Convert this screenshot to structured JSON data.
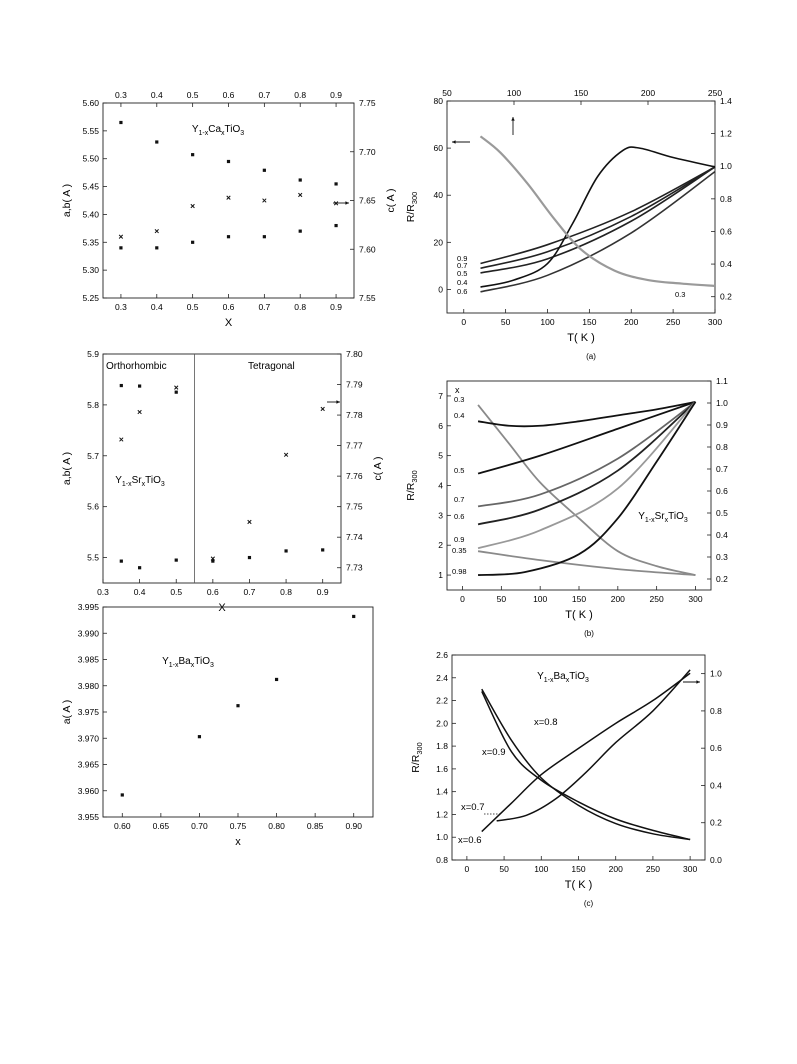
{
  "chart_data": [
    {
      "id": "ca_lattice",
      "type": "scatter",
      "title": "",
      "annotation": "Y1-xCaxTiO3",
      "xlabel": "X",
      "ylabel": "a,b( A )",
      "y2label": "c( A )",
      "xlim": [
        0.25,
        0.95
      ],
      "ylim": [
        5.25,
        5.6
      ],
      "y2lim": [
        7.55,
        7.75
      ],
      "x_ticks": [
        "0.3",
        "0.4",
        "0.5",
        "0.6",
        "0.7",
        "0.8",
        "0.9"
      ],
      "top_ticks": [
        "0.3",
        "0.4",
        "0.5",
        "0.6",
        "0.7",
        "0.8",
        "0.9"
      ],
      "y_ticks": [
        "5.25",
        "5.30",
        "5.35",
        "5.40",
        "5.45",
        "5.50",
        "5.55",
        "5.60"
      ],
      "y2_ticks": [
        "7.55",
        "7.60",
        "7.65",
        "7.70",
        "7.75"
      ],
      "series": [
        {
          "axis": "left",
          "marker": "square",
          "x": [
            0.3,
            0.4,
            0.5,
            0.6,
            0.7,
            0.8,
            0.9
          ],
          "y": [
            5.34,
            5.34,
            5.35,
            5.36,
            5.36,
            5.37,
            5.38
          ]
        },
        {
          "axis": "left",
          "marker": "cross",
          "x": [
            0.3,
            0.4,
            0.5,
            0.6,
            0.7,
            0.8,
            0.9
          ],
          "y": [
            5.36,
            5.37,
            5.415,
            5.43,
            5.425,
            5.435,
            5.42
          ]
        },
        {
          "axis": "right",
          "marker": "square",
          "x": [
            0.3,
            0.4,
            0.5,
            0.6,
            0.7,
            0.8,
            0.9
          ],
          "y": [
            7.73,
            7.71,
            7.697,
            7.69,
            7.681,
            7.671,
            7.667
          ]
        }
      ]
    },
    {
      "id": "sr_lattice",
      "type": "scatter",
      "title": "",
      "annotation": "Y1-xSrxTiO3",
      "regions": [
        "Orthorhombic",
        "Tetragonal"
      ],
      "boundary_x": 0.55,
      "xlabel": "X",
      "ylabel": "a,b( A )",
      "y2label": "c( A )",
      "xlim": [
        0.3,
        0.95
      ],
      "ylim": [
        5.45,
        5.9
      ],
      "y2lim": [
        7.725,
        7.8
      ],
      "x_ticks": [
        "0.3",
        "0.4",
        "0.5",
        "0.6",
        "0.7",
        "0.8",
        "0.9"
      ],
      "y_ticks": [
        "5.5",
        "5.6",
        "5.7",
        "5.8",
        "5.9"
      ],
      "y2_ticks": [
        "7.73",
        "7.74",
        "7.75",
        "7.76",
        "7.77",
        "7.78",
        "7.79",
        "7.80"
      ],
      "series": [
        {
          "axis": "left",
          "marker": "square",
          "x": [
            0.35,
            0.4,
            0.5,
            0.6,
            0.7,
            0.8,
            0.9
          ],
          "y": [
            5.493,
            5.48,
            5.495,
            5.493,
            5.5,
            5.513,
            5.515
          ]
        },
        {
          "axis": "left",
          "marker": "square",
          "x": [
            0.35,
            0.4,
            0.5
          ],
          "y": [
            5.838,
            5.837,
            5.825
          ]
        },
        {
          "axis": "right",
          "marker": "cross",
          "x": [
            0.35,
            0.4,
            0.5,
            0.6,
            0.7,
            0.8,
            0.9
          ],
          "y": [
            7.772,
            7.781,
            7.789,
            7.733,
            7.745,
            7.767,
            7.782
          ]
        }
      ]
    },
    {
      "id": "ba_lattice",
      "type": "scatter",
      "title": "",
      "annotation": "Y1-xBaxTiO3",
      "xlabel": "x",
      "ylabel": "a( A )",
      "xlim": [
        0.575,
        0.925
      ],
      "ylim": [
        3.955,
        3.995
      ],
      "x_ticks": [
        "0.60",
        "0.65",
        "0.70",
        "0.75",
        "0.80",
        "0.85",
        "0.90"
      ],
      "y_ticks": [
        "3.955",
        "3.960",
        "3.965",
        "3.970",
        "3.975",
        "3.980",
        "3.985",
        "3.990",
        "3.995"
      ],
      "series": [
        {
          "axis": "left",
          "marker": "square",
          "x": [
            0.6,
            0.7,
            0.75,
            0.8,
            0.9
          ],
          "y": [
            3.9592,
            3.9703,
            3.9762,
            3.9812,
            3.9932
          ]
        }
      ]
    },
    {
      "id": "ca_resistance",
      "type": "line",
      "panel_label": "(a)",
      "title": "",
      "xlabel": "T( K )",
      "ylabel": "R/R300",
      "xlim": [
        -20,
        300
      ],
      "ylim": [
        -10,
        80
      ],
      "y2lim": [
        0.1,
        1.4
      ],
      "top_xlim": [
        50,
        250
      ],
      "x_ticks": [
        "0",
        "50",
        "100",
        "150",
        "200",
        "250",
        "300"
      ],
      "top_ticks": [
        "50",
        "100",
        "150",
        "200",
        "250"
      ],
      "y_ticks": [
        "0",
        "20",
        "40",
        "60",
        "80"
      ],
      "y2_ticks": [
        "0.2",
        "0.4",
        "0.6",
        "0.8",
        "1.0",
        "1.2",
        "1.4"
      ],
      "curve_labels": [
        "0.9",
        "0.7",
        "0.5",
        "0.4",
        "0.6",
        "0.3"
      ],
      "series": [
        {
          "name": "0.9",
          "color": "#222222",
          "x": [
            20,
            100,
            200,
            300
          ],
          "y": [
            11,
            19,
            33,
            52
          ]
        },
        {
          "name": "0.7",
          "color": "#222222",
          "x": [
            20,
            100,
            200,
            300
          ],
          "y": [
            9,
            16,
            31,
            52
          ]
        },
        {
          "name": "0.5",
          "color": "#222222",
          "x": [
            20,
            100,
            200,
            300
          ],
          "y": [
            7,
            13,
            29,
            52
          ]
        },
        {
          "name": "0.4",
          "color": "#111111",
          "x": [
            20,
            60,
            100,
            130,
            160,
            190,
            210,
            250,
            300
          ],
          "y": [
            1,
            4,
            11,
            28,
            48,
            59,
            60,
            56,
            52
          ]
        },
        {
          "name": "0.6",
          "color": "#333333",
          "x": [
            20,
            100,
            200,
            300
          ],
          "y": [
            -1,
            6,
            24,
            50
          ]
        },
        {
          "name": "0.3",
          "color": "#9a9a9a",
          "axis": "top",
          "x": [
            75,
            90,
            110,
            130,
            150,
            175,
            200,
            225,
            250
          ],
          "y": [
            65,
            58,
            45,
            30,
            17,
            8,
            4,
            2.5,
            1.5
          ]
        }
      ]
    },
    {
      "id": "sr_resistance",
      "type": "line",
      "panel_label": "(b)",
      "title": "",
      "annotation": "Y1-xSrxTiO3",
      "xlabel": "T( K )",
      "ylabel": "R/R300",
      "xlim": [
        -20,
        320
      ],
      "ylim": [
        0.5,
        7.5
      ],
      "y2lim": [
        0.15,
        1.1
      ],
      "x_ticks": [
        "0",
        "50",
        "100",
        "150",
        "200",
        "250",
        "300"
      ],
      "y_ticks": [
        "1",
        "2",
        "3",
        "4",
        "5",
        "6",
        "7"
      ],
      "y2_ticks": [
        "0.2",
        "0.3",
        "0.4",
        "0.5",
        "0.6",
        "0.7",
        "0.8",
        "0.9",
        "1.0",
        "1.1"
      ],
      "legend_title": "x",
      "curve_labels": [
        "0.3",
        "0.4",
        "0.5",
        "0.7",
        "0.6",
        "0.9",
        "0.35",
        "0.98"
      ],
      "series": [
        {
          "name": "0.3",
          "color": "#8a8a8a",
          "x": [
            20,
            60,
            100,
            150,
            200,
            250,
            300
          ],
          "y": [
            6.7,
            5.4,
            4.1,
            2.9,
            1.8,
            1.3,
            1.0
          ]
        },
        {
          "name": "0.4",
          "color": "#111111",
          "x": [
            20,
            60,
            100,
            150,
            200,
            250,
            300
          ],
          "y": [
            6.15,
            6.0,
            6.0,
            6.15,
            6.35,
            6.55,
            6.8
          ]
        },
        {
          "name": "0.5",
          "color": "#111111",
          "x": [
            20,
            100,
            200,
            300
          ],
          "y": [
            4.4,
            5.0,
            5.9,
            6.8
          ]
        },
        {
          "name": "0.7",
          "color": "#666666",
          "x": [
            20,
            100,
            200,
            300
          ],
          "y": [
            3.3,
            3.7,
            4.9,
            6.8
          ]
        },
        {
          "name": "0.6",
          "color": "#222222",
          "x": [
            20,
            100,
            200,
            300
          ],
          "y": [
            2.7,
            3.2,
            4.5,
            6.8
          ]
        },
        {
          "name": "0.9",
          "color": "#999999",
          "x": [
            20,
            100,
            200,
            300
          ],
          "y": [
            1.9,
            2.5,
            3.9,
            6.8
          ]
        },
        {
          "name": "0.35",
          "color": "#8a8a8a",
          "x": [
            20,
            100,
            200,
            300
          ],
          "y": [
            1.8,
            1.5,
            1.2,
            1.0
          ]
        },
        {
          "name": "0.98",
          "color": "#111111",
          "x": [
            20,
            80,
            150,
            200,
            250,
            300
          ],
          "y": [
            1.0,
            1.1,
            1.7,
            2.9,
            4.8,
            6.8
          ]
        }
      ]
    },
    {
      "id": "ba_resistance",
      "type": "line",
      "panel_label": "(c)",
      "title": "",
      "annotation": "Y1-xBaxTiO3",
      "xlabel": "T( K )",
      "ylabel": "R/R300",
      "xlim": [
        -20,
        320
      ],
      "ylim": [
        0.8,
        2.6
      ],
      "y2lim": [
        0.0,
        1.1
      ],
      "x_ticks": [
        "0",
        "50",
        "100",
        "150",
        "200",
        "250",
        "300"
      ],
      "y_ticks": [
        "0.8",
        "1.0",
        "1.2",
        "1.4",
        "1.6",
        "1.8",
        "2.0",
        "2.2",
        "2.4",
        "2.6"
      ],
      "y2_ticks": [
        "0.0",
        "0.2",
        "0.4",
        "0.6",
        "0.8",
        "1.0"
      ],
      "curve_labels": [
        "x=0.8",
        "x=0.9",
        "x=0.7",
        "x=0.6"
      ],
      "series": [
        {
          "name": "x=0.8",
          "x": [
            20,
            60,
            100,
            150,
            200,
            250,
            300
          ],
          "y": [
            2.3,
            1.85,
            1.52,
            1.28,
            1.12,
            1.03,
            0.98
          ]
        },
        {
          "name": "x=0.9",
          "x": [
            20,
            60,
            100,
            150,
            200,
            250,
            300
          ],
          "y": [
            2.28,
            1.75,
            1.5,
            1.31,
            1.16,
            1.06,
            0.98
          ]
        },
        {
          "name": "x=0.7",
          "axis": "right",
          "x": [
            40,
            80,
            120,
            160,
            200,
            250,
            300
          ],
          "y": [
            0.21,
            0.24,
            0.33,
            0.47,
            0.63,
            0.8,
            1.02
          ]
        },
        {
          "name": "x=0.6",
          "x": [
            20,
            60,
            100,
            150,
            200,
            250,
            300
          ],
          "y": [
            1.05,
            1.3,
            1.55,
            1.78,
            2.0,
            2.2,
            2.44
          ]
        }
      ]
    }
  ]
}
